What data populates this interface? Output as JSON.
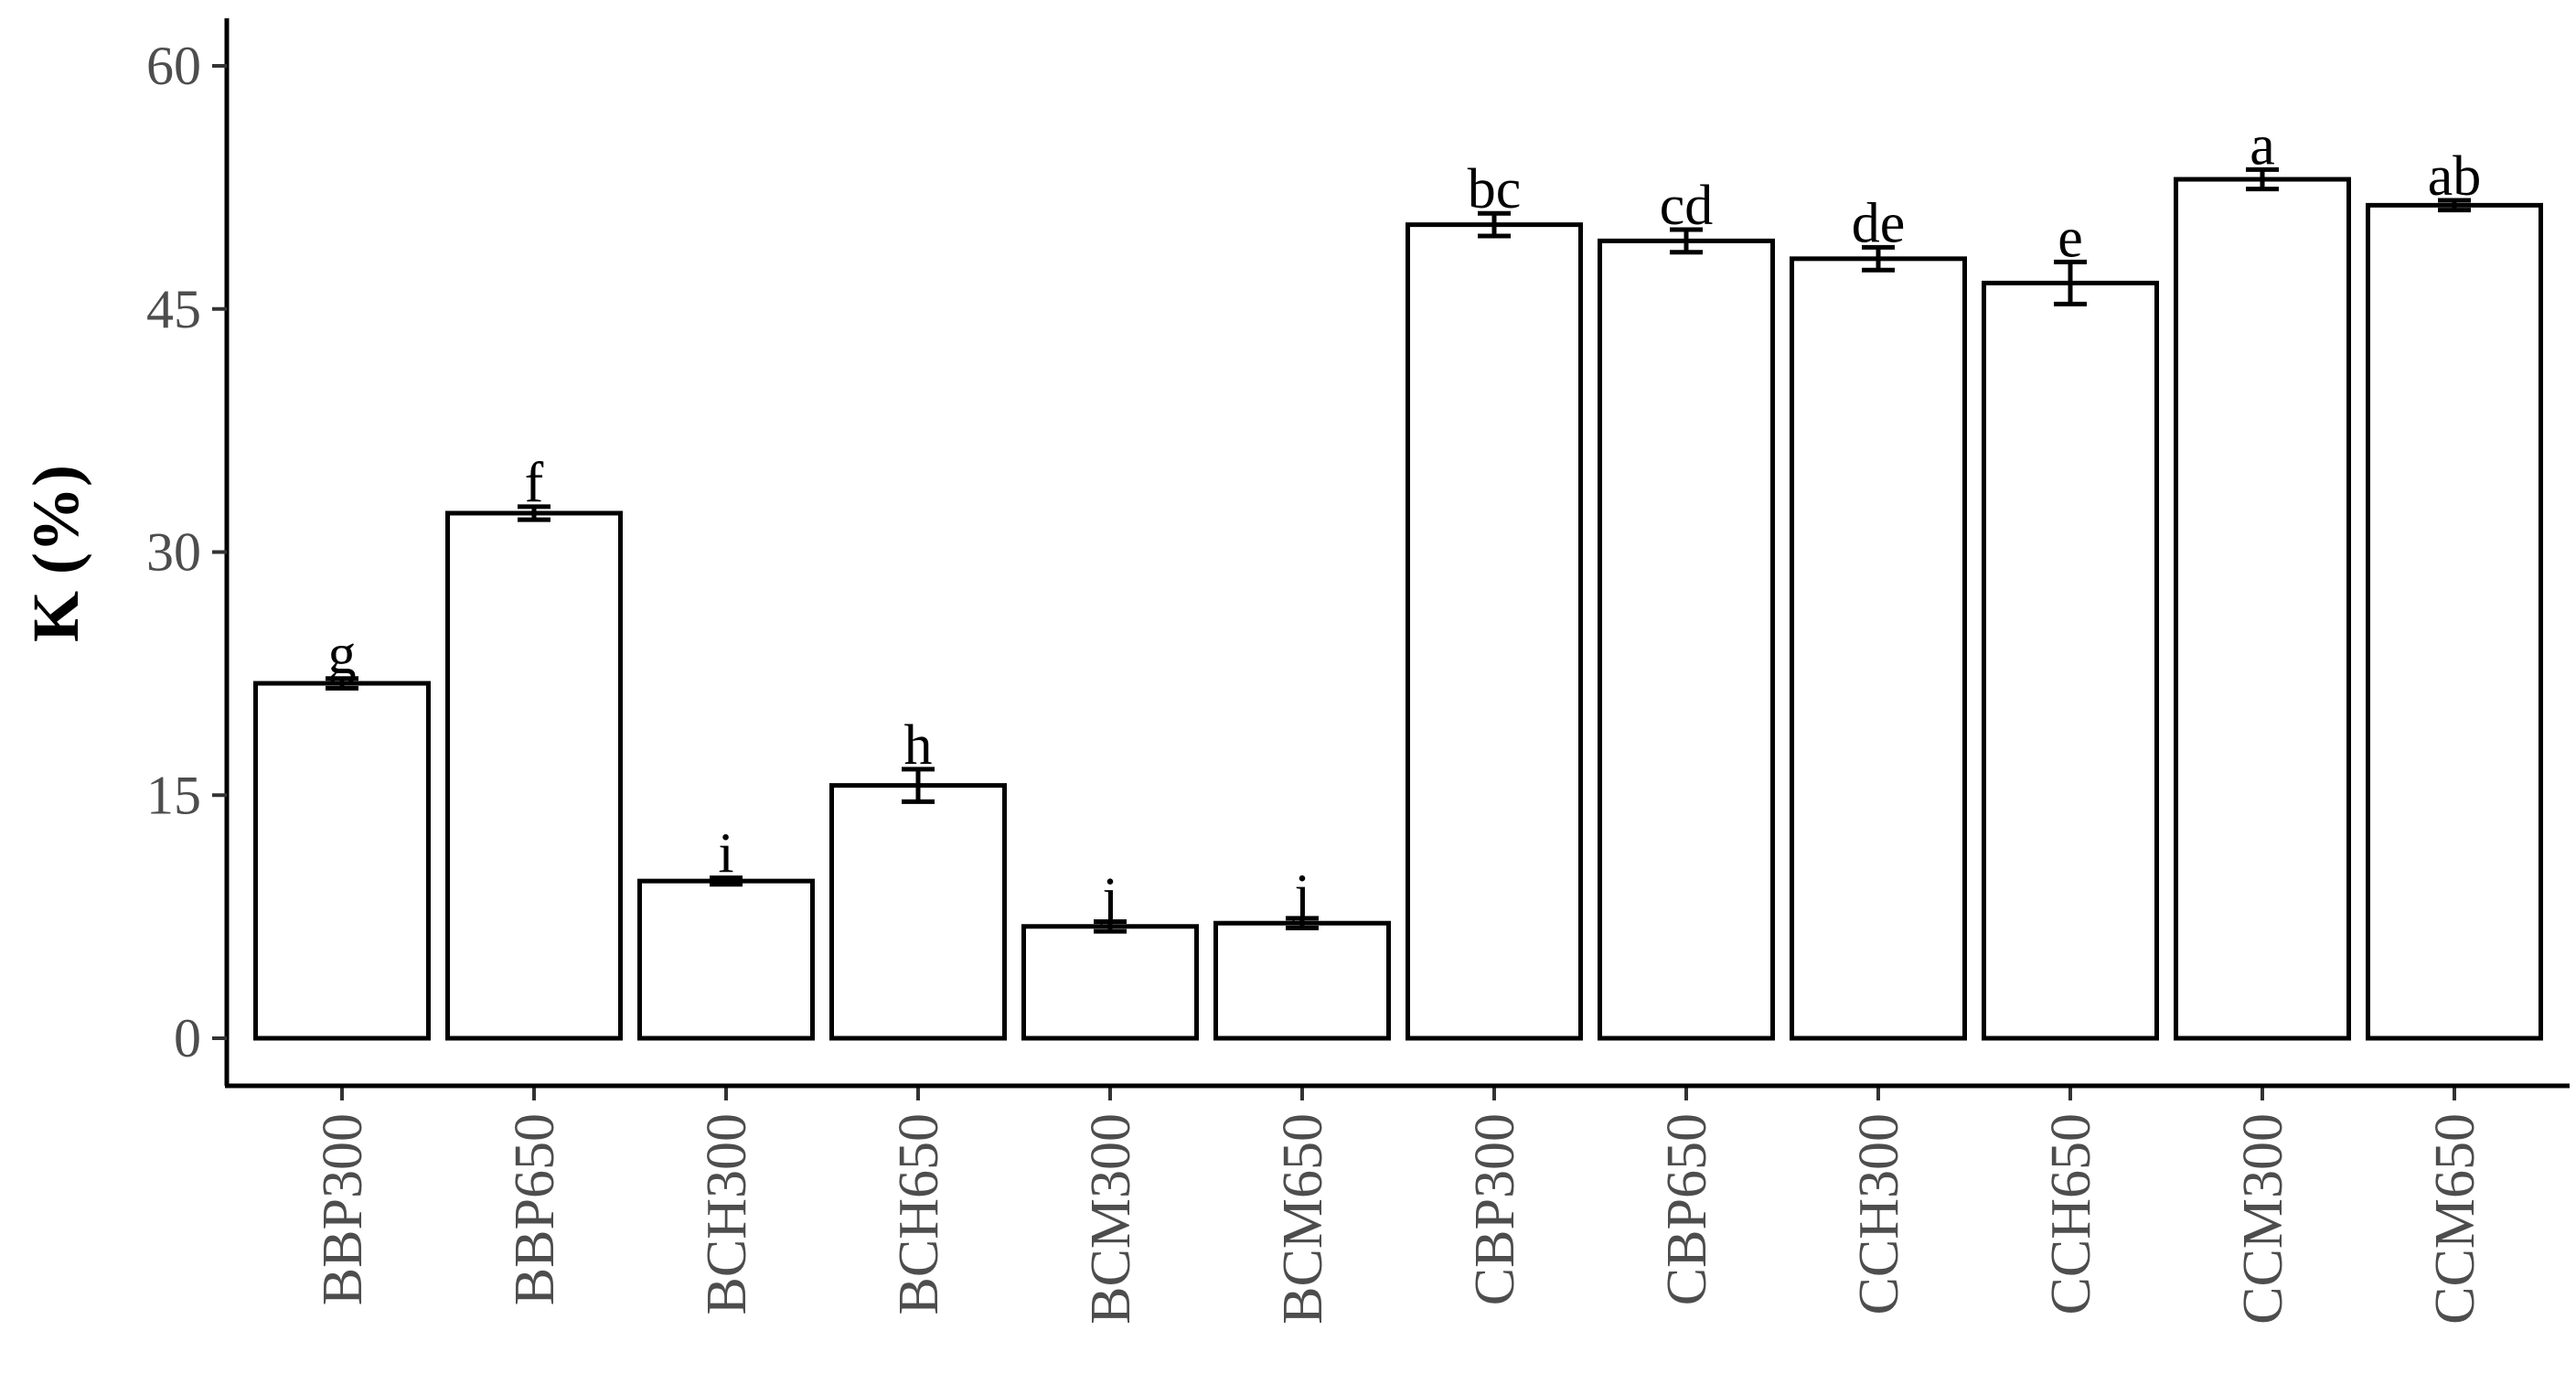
{
  "chart_data": {
    "type": "bar",
    "title": "",
    "xlabel": "",
    "ylabel": "K (%)",
    "ylim": [
      0,
      63
    ],
    "yticks": [
      0,
      15,
      30,
      45,
      60
    ],
    "grid": false,
    "legend": "none",
    "categories": [
      "BBP300",
      "BBP650",
      "BCH300",
      "BCH650",
      "BCM300",
      "BCM650",
      "CBP300",
      "CBP650",
      "CCH300",
      "CCH650",
      "CCM300",
      "CCM650"
    ],
    "values": [
      21.9,
      32.4,
      9.7,
      15.6,
      6.9,
      7.1,
      50.2,
      49.2,
      48.1,
      46.6,
      53.0,
      51.4
    ],
    "errors": [
      0.3,
      0.4,
      0.2,
      1.0,
      0.3,
      0.3,
      0.7,
      0.7,
      0.7,
      1.3,
      0.6,
      0.3
    ],
    "labels": [
      "g",
      "f",
      "i",
      "h",
      "j",
      "j",
      "bc",
      "cd",
      "de",
      "e",
      "a",
      "ab"
    ],
    "bar_fill": "#ffffff",
    "bar_stroke": "#000000"
  }
}
